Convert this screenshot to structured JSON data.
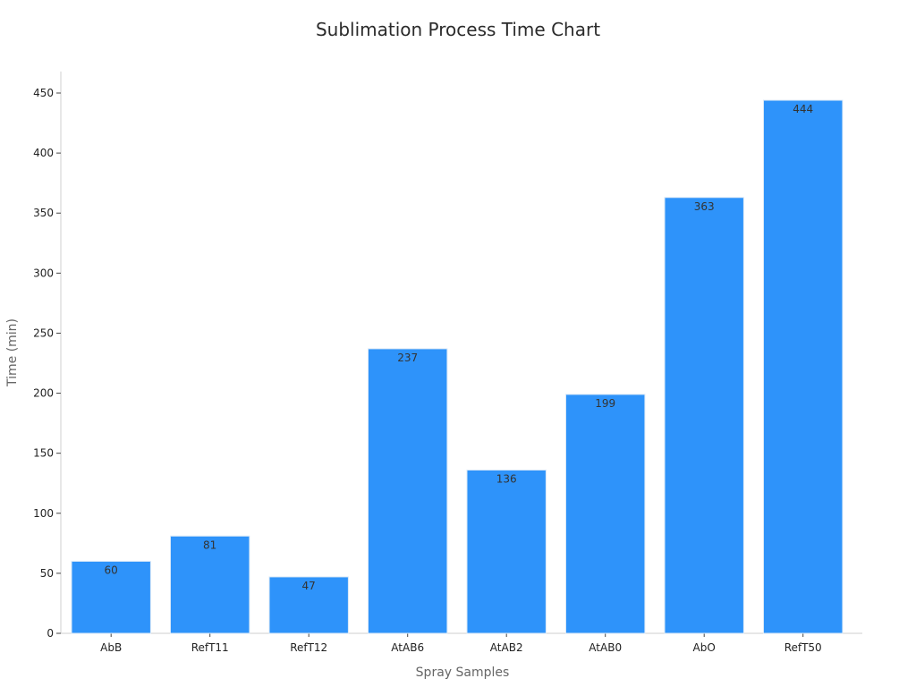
{
  "chart_data": {
    "type": "bar",
    "title": "Sublimation Process Time Chart",
    "xlabel": "Spray Samples",
    "ylabel": "Time (min)",
    "categories": [
      "AbB",
      "RefT11",
      "RefT12",
      "AtAB6",
      "AtAB2",
      "AtAB0",
      "AbO",
      "RefT50"
    ],
    "values": [
      60,
      81,
      47,
      237,
      136,
      199,
      363,
      444
    ],
    "ylim": [
      0,
      450
    ],
    "yticks": [
      0,
      50,
      100,
      150,
      200,
      250,
      300,
      350,
      400,
      450
    ],
    "grid": false,
    "legend": "none",
    "bar_color": "#2e93fa"
  }
}
